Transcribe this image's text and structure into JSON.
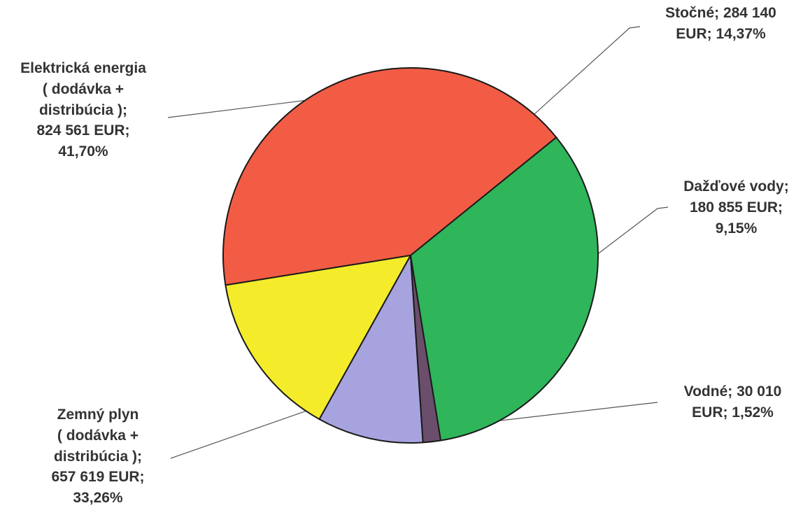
{
  "chart_data": {
    "type": "pie",
    "title": "",
    "slices": [
      {
        "name": "Elektrická energia ( dodávka + distribúcia )",
        "value": 824561,
        "percent": 41.7,
        "label": "Elektrická energia\n( dodávka +\ndistribúcia );\n824 561 EUR;\n41,70%",
        "color": "#f25c45"
      },
      {
        "name": "Stočné",
        "value": 284140,
        "percent": 14.37,
        "label": "Stočné; 284 140\nEUR; 14,37%",
        "color": "#f4ec2a"
      },
      {
        "name": "Dažďové vody",
        "value": 180855,
        "percent": 9.15,
        "label": "Dažďové vody;\n180 855 EUR;\n9,15%",
        "color": "#a7a3de"
      },
      {
        "name": "Vodné",
        "value": 30010,
        "percent": 1.52,
        "label": "Vodné; 30 010\nEUR; 1,52%",
        "color": "#6a4e6c"
      },
      {
        "name": "Zemný plyn ( dodávka + distribúcia )",
        "value": 657619,
        "percent": 33.26,
        "label": "Zemný plyn\n( dodávka +\ndistribúcia );\n657 619 EUR;\n33,26%",
        "color": "#2fb55a"
      }
    ],
    "start_angle_deg": -39,
    "legend": "none"
  }
}
